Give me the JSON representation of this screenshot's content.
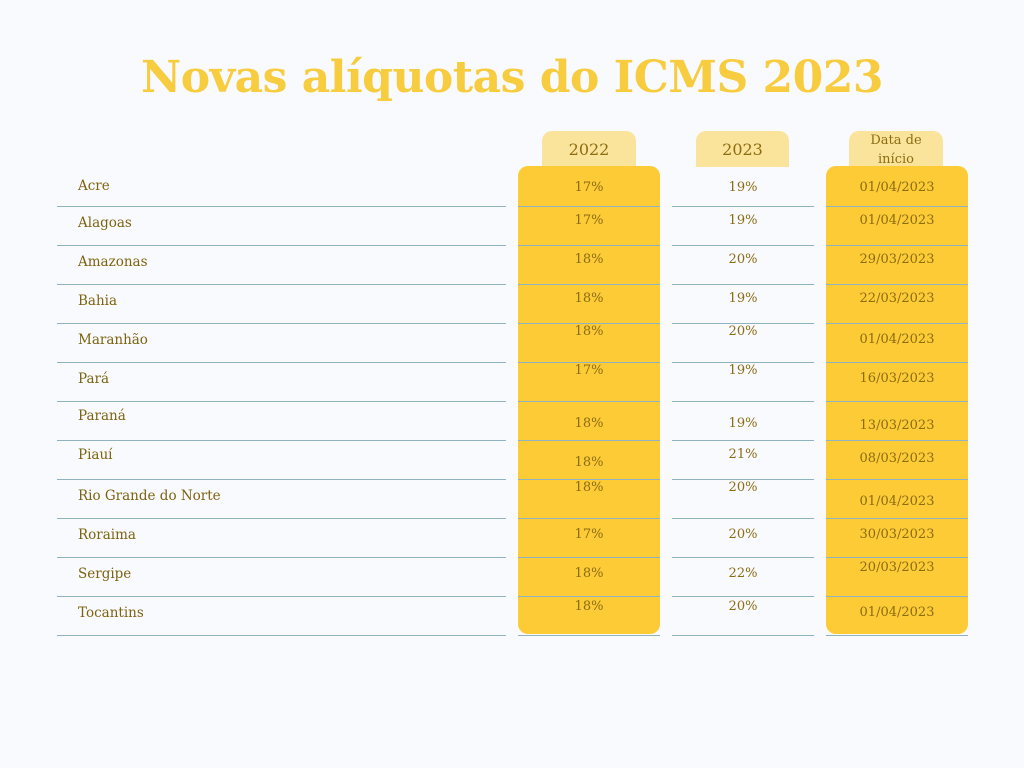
{
  "title": "Novas alíquotas do ICMS 2023",
  "headers": {
    "y2022": "2022",
    "y2023": "2023",
    "data_line1": "Data de",
    "data_line2": "início"
  },
  "colors": {
    "title": "#f7cc3e",
    "column_fill": "#fdcb35",
    "header_tab": "#fae39a",
    "text": "#7f6413",
    "rule": "#8fb3c0",
    "background": "#f8fafd"
  },
  "rows": [
    {
      "state": "Acre",
      "y2022": "17%",
      "y2023": "19%",
      "start": "01/04/2023"
    },
    {
      "state": "Alagoas",
      "y2022": "17%",
      "y2023": "19%",
      "start": "01/04/2023"
    },
    {
      "state": "Amazonas",
      "y2022": "18%",
      "y2023": "20%",
      "start": "29/03/2023"
    },
    {
      "state": "Bahia",
      "y2022": "18%",
      "y2023": "19%",
      "start": "22/03/2023"
    },
    {
      "state": "Maranhão",
      "y2022": "18%",
      "y2023": "20%",
      "start": "01/04/2023"
    },
    {
      "state": "Pará",
      "y2022": "17%",
      "y2023": "19%",
      "start": "16/03/2023"
    },
    {
      "state": "Paraná",
      "y2022": "18%",
      "y2023": "19%",
      "start": "13/03/2023"
    },
    {
      "state": "Piauí",
      "y2022": "18%",
      "y2023": "21%",
      "start": "08/03/2023"
    },
    {
      "state": "Rio Grande do Norte",
      "y2022": "18%",
      "y2023": "20%",
      "start": "01/04/2023"
    },
    {
      "state": "Roraima",
      "y2022": "17%",
      "y2023": "20%",
      "start": "30/03/2023"
    },
    {
      "state": "Sergipe",
      "y2022": "18%",
      "y2023": "22%",
      "start": "20/03/2023"
    },
    {
      "state": "Tocantins",
      "y2022": "18%",
      "y2023": "20%",
      "start": "01/04/2023"
    }
  ]
}
